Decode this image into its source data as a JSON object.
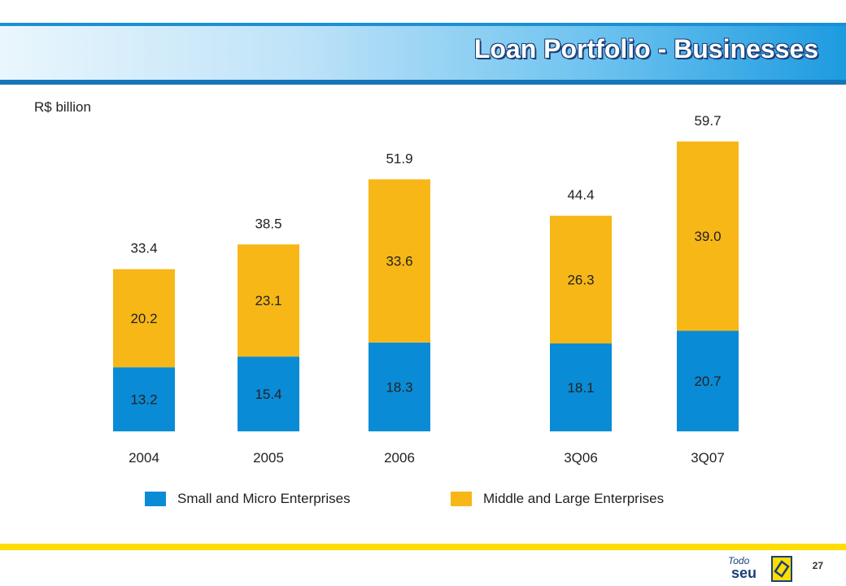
{
  "header": {
    "title": "Loan Portfolio - Businesses"
  },
  "unit_label": "R$ billion",
  "colors": {
    "small": "#0a8bd6",
    "large": "#f7b717"
  },
  "legend": {
    "small_label": "Small and Micro Enterprises",
    "large_label": "Middle and Large Enterprises"
  },
  "footer": {
    "page_number": "27",
    "brand_top": "Todo",
    "brand_bottom": "seu"
  },
  "chart_data": {
    "type": "bar",
    "stacked": true,
    "categories": [
      "2004",
      "2005",
      "2006",
      "3Q06",
      "3Q07"
    ],
    "series": [
      {
        "name": "Small and Micro Enterprises",
        "values": [
          13.2,
          15.4,
          18.3,
          18.1,
          20.7
        ]
      },
      {
        "name": "Middle and Large Enterprises",
        "values": [
          20.2,
          23.1,
          33.6,
          26.3,
          39.0
        ]
      }
    ],
    "totals": [
      33.4,
      38.5,
      51.9,
      44.4,
      59.7
    ],
    "segment_labels": [
      [
        "13.2",
        "20.2"
      ],
      [
        "15.4",
        "23.1"
      ],
      [
        "18.3",
        "33.6"
      ],
      [
        "18.1",
        "26.3"
      ],
      [
        "20.7",
        "39.0"
      ]
    ],
    "total_labels": [
      "33.4",
      "38.5",
      "51.9",
      "44.4",
      "59.7"
    ],
    "ylim": [
      0,
      60
    ],
    "grid": false,
    "legend_position": "bottom"
  }
}
